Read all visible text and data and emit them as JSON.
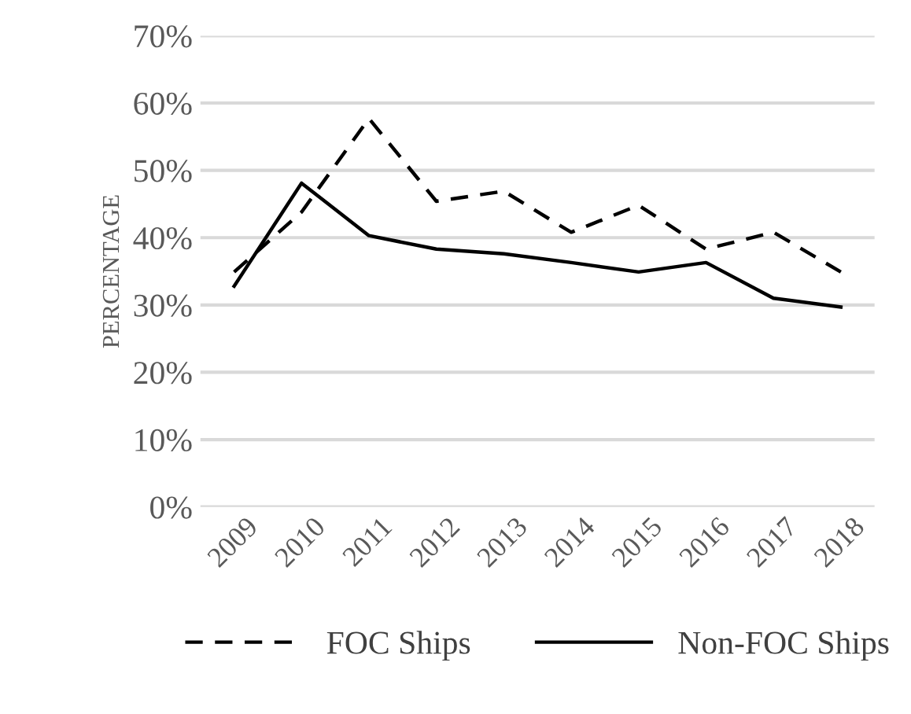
{
  "chart_data": {
    "type": "line",
    "ylabel": "PERCENTAGE",
    "categories": [
      "2009",
      "2010",
      "2011",
      "2012",
      "2013",
      "2014",
      "2015",
      "2016",
      "2017",
      "2018"
    ],
    "series": [
      {
        "name": "FOC Ships",
        "color": "#000000",
        "line_style": "dashed",
        "values": [
          34.9,
          43.8,
          57.7,
          45.4,
          46.9,
          40.8,
          44.8,
          38.3,
          40.8,
          34.9
        ]
      },
      {
        "name": "Non-FOC Ships",
        "color": "#000000",
        "line_style": "solid",
        "values": [
          32.8,
          48.1,
          40.3,
          38.3,
          37.6,
          36.3,
          34.9,
          36.3,
          31.0,
          29.7
        ]
      }
    ],
    "ylim": [
      0,
      70
    ],
    "yticks": [
      {
        "value": 0,
        "label": "0%"
      },
      {
        "value": 10,
        "label": "10%"
      },
      {
        "value": 20,
        "label": "20%"
      },
      {
        "value": 30,
        "label": "30%"
      },
      {
        "value": 40,
        "label": "40%"
      },
      {
        "value": 50,
        "label": "50%"
      },
      {
        "value": 60,
        "label": "60%"
      },
      {
        "value": 70,
        "label": "70%"
      }
    ],
    "grid": "y",
    "legend": "bottom",
    "marker": "none"
  }
}
